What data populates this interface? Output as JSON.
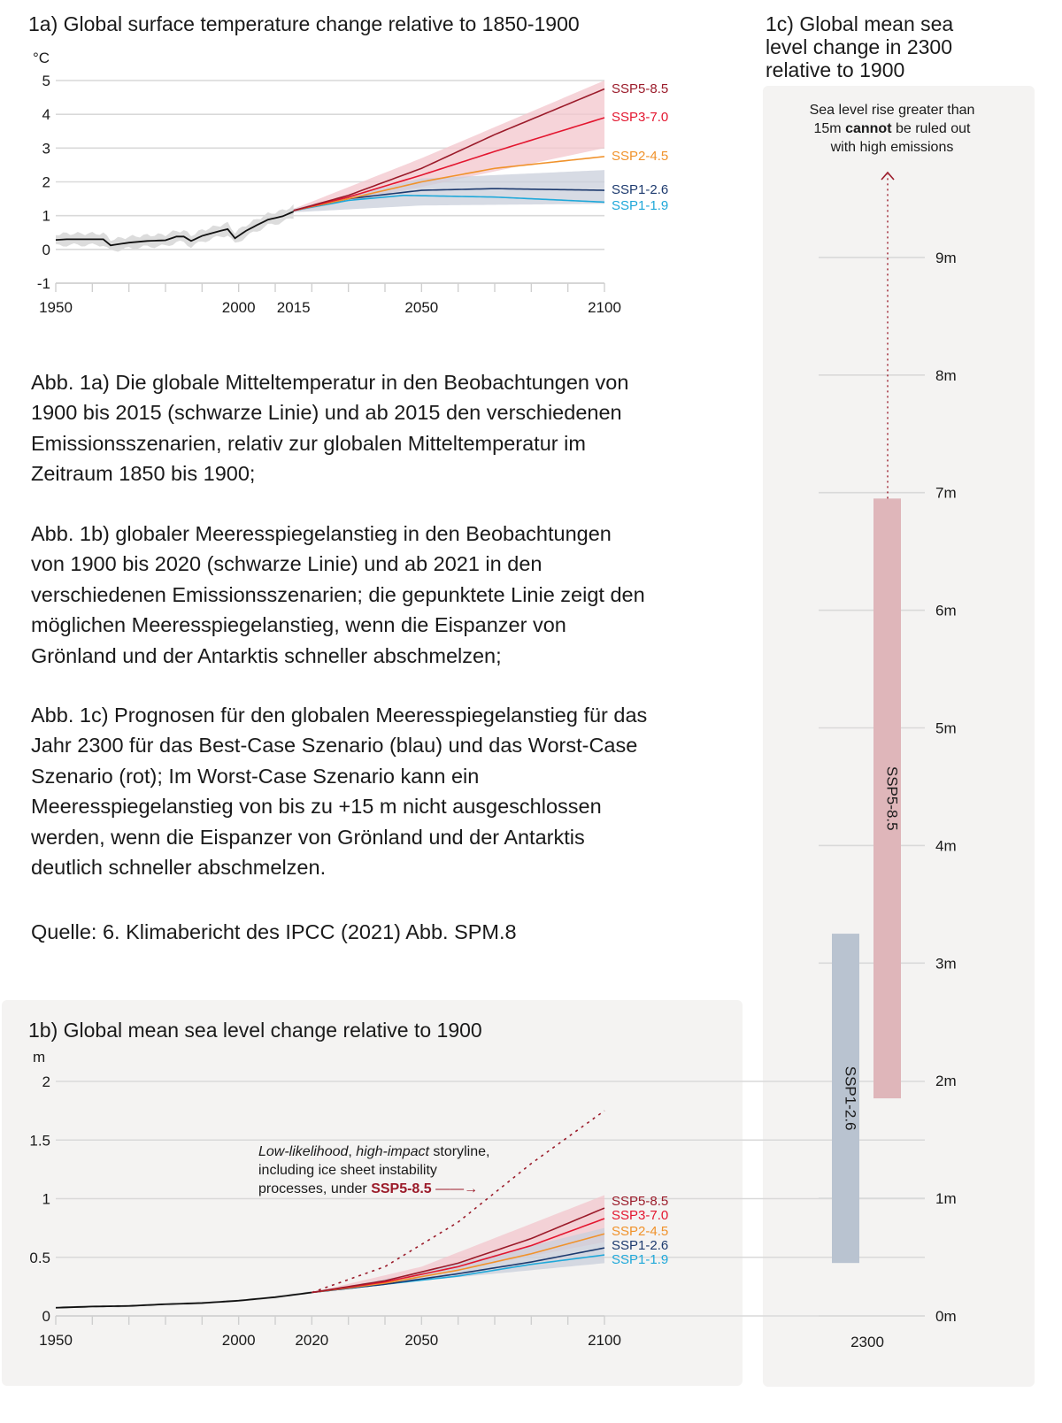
{
  "colors": {
    "ssp585": "#9b1b2a",
    "ssp370": "#e3162f",
    "ssp245": "#f0922b",
    "ssp126": "#1d3a6e",
    "ssp119": "#1fa8d9",
    "observed": "#111111",
    "red_band": "#f3c6cc",
    "blue_band": "#c9cfdb",
    "grey_band": "#dcdcdc",
    "panel": "#f4f3f2"
  },
  "text": {
    "paragraphs": [
      [
        "Abb. 1a) Die globale Mitteltemperatur in den Beobachtungen von",
        "1900 bis 2015 (schwarze Linie) und ab 2015 den verschiedenen",
        "Emissionsszenarien, relativ zur globalen Mitteltemperatur im",
        "Zeitraum 1850 bis 1900;"
      ],
      [
        "Abb. 1b) globaler Meeresspiegelanstieg in den Beobachtungen",
        "von 1900 bis 2020 (schwarze Linie) und ab 2021 in den",
        "verschiedenen Emissionsszenarien; die gepunktete Linie zeigt den",
        "möglichen Meeresspiegelanstieg, wenn die Eispanzer von",
        "Grönland und der Antarktis schneller abschmelzen;"
      ],
      [
        "Abb. 1c) Prognosen für den globalen Meeresspiegelanstieg für das",
        "Jahr 2300 für das Best-Case Szenario (blau) und das Worst-Case",
        "Szenario (rot); Im Worst-Case Szenario kann ein",
        "Meeresspiegelanstieg von bis zu +15 m nicht ausgeschlossen",
        "werden, wenn die Eispanzer von Grönland und der Antarktis",
        "deutlich schneller abschmelzen."
      ]
    ],
    "source": "Quelle: 6. Klimabericht des IPCC (2021) Abb. SPM.8"
  },
  "chart_data": [
    {
      "id": "1a",
      "type": "line",
      "title": "1a) Global surface temperature change relative to 1850-1900",
      "ylabel": "°C",
      "xlim": [
        1950,
        2100
      ],
      "ylim": [
        -1,
        5
      ],
      "yticks": [
        "5",
        "4",
        "3",
        "2",
        "1",
        "0",
        "-1"
      ],
      "ytick_values": [
        5,
        4,
        3,
        2,
        1,
        0,
        -1
      ],
      "xticks": [
        "1950",
        "2000",
        "2015",
        "2050",
        "2100"
      ],
      "xtick_values": [
        1950,
        2000,
        2015,
        2050,
        2100
      ],
      "grid": true,
      "observed": {
        "x": [
          1950,
          1953,
          1960,
          1963,
          1965,
          1970,
          1975,
          1980,
          1983,
          1985,
          1987,
          1990,
          1995,
          1997,
          1999,
          2002,
          2005,
          2008,
          2012,
          2015
        ],
        "y": [
          0.28,
          0.3,
          0.3,
          0.3,
          0.12,
          0.2,
          0.25,
          0.27,
          0.38,
          0.38,
          0.25,
          0.4,
          0.55,
          0.6,
          0.33,
          0.55,
          0.72,
          0.88,
          0.98,
          1.12
        ],
        "band_halfwidth": 0.17
      },
      "bands": [
        {
          "name": "high-emission range",
          "x": [
            2015,
            2050,
            2100
          ],
          "low": [
            1.1,
            1.85,
            3.0
          ],
          "high": [
            1.2,
            2.7,
            5.0
          ],
          "color": "red_band"
        },
        {
          "name": "low-emission range",
          "x": [
            2015,
            2050,
            2100
          ],
          "low": [
            1.1,
            1.3,
            1.35
          ],
          "high": [
            1.2,
            2.1,
            2.35
          ],
          "color": "blue_band"
        }
      ],
      "series": [
        {
          "name": "SSP5-8.5",
          "color": "ssp585",
          "x": [
            2015,
            2030,
            2050,
            2070,
            2100
          ],
          "values": [
            1.15,
            1.6,
            2.4,
            3.4,
            4.75
          ]
        },
        {
          "name": "SSP3-7.0",
          "color": "ssp370",
          "x": [
            2015,
            2030,
            2050,
            2070,
            2100
          ],
          "values": [
            1.15,
            1.55,
            2.2,
            2.9,
            3.9
          ]
        },
        {
          "name": "SSP2-4.5",
          "color": "ssp245",
          "x": [
            2015,
            2030,
            2050,
            2070,
            2100
          ],
          "values": [
            1.15,
            1.5,
            2.0,
            2.4,
            2.75
          ]
        },
        {
          "name": "SSP1-2.6",
          "color": "ssp126",
          "x": [
            2015,
            2030,
            2050,
            2070,
            2100
          ],
          "values": [
            1.15,
            1.5,
            1.75,
            1.8,
            1.75
          ]
        },
        {
          "name": "SSP1-1.9",
          "color": "ssp119",
          "x": [
            2015,
            2030,
            2045,
            2070,
            2100
          ],
          "values": [
            1.15,
            1.45,
            1.6,
            1.55,
            1.4
          ]
        }
      ]
    },
    {
      "id": "1b",
      "type": "line",
      "title": "1b) Global mean sea level change relative to 1900",
      "ylabel": "m",
      "xlim": [
        1950,
        2100
      ],
      "ylim": [
        0,
        2
      ],
      "yticks": [
        "2",
        "1.5",
        "1",
        "0.5",
        "0"
      ],
      "ytick_values": [
        2,
        1.5,
        1,
        0.5,
        0
      ],
      "xticks": [
        "1950",
        "2000",
        "2020",
        "2050",
        "2100"
      ],
      "xtick_values": [
        1950,
        2000,
        2020,
        2050,
        2100
      ],
      "grid": true,
      "observed": {
        "x": [
          1950,
          1960,
          1970,
          1980,
          1990,
          2000,
          2010,
          2020
        ],
        "y": [
          0.07,
          0.08,
          0.085,
          0.1,
          0.11,
          0.13,
          0.16,
          0.2
        ],
        "band_halfwidth": 0.01
      },
      "bands": [
        {
          "name": "high-emission range",
          "x": [
            2020,
            2050,
            2100
          ],
          "low": [
            0.2,
            0.33,
            0.63
          ],
          "high": [
            0.2,
            0.42,
            1.03
          ],
          "color": "red_band"
        },
        {
          "name": "low-emission range",
          "x": [
            2020,
            2050,
            2100
          ],
          "low": [
            0.2,
            0.3,
            0.45
          ],
          "high": [
            0.2,
            0.37,
            0.75
          ],
          "color": "blue_band"
        }
      ],
      "series": [
        {
          "name": "SSP5-8.5",
          "color": "ssp585",
          "x": [
            2020,
            2040,
            2060,
            2080,
            2100
          ],
          "values": [
            0.2,
            0.3,
            0.45,
            0.66,
            0.92
          ]
        },
        {
          "name": "SSP3-7.0",
          "color": "ssp370",
          "x": [
            2020,
            2040,
            2060,
            2080,
            2100
          ],
          "values": [
            0.2,
            0.29,
            0.42,
            0.6,
            0.83
          ]
        },
        {
          "name": "SSP2-4.5",
          "color": "ssp245",
          "x": [
            2020,
            2040,
            2060,
            2080,
            2100
          ],
          "values": [
            0.2,
            0.28,
            0.39,
            0.53,
            0.7
          ]
        },
        {
          "name": "SSP1-2.6",
          "color": "ssp126",
          "x": [
            2020,
            2040,
            2060,
            2080,
            2100
          ],
          "values": [
            0.2,
            0.27,
            0.36,
            0.46,
            0.58
          ]
        },
        {
          "name": "SSP1-1.9",
          "color": "ssp119",
          "x": [
            2020,
            2040,
            2060,
            2080,
            2100
          ],
          "values": [
            0.2,
            0.27,
            0.34,
            0.44,
            0.52
          ]
        }
      ],
      "storyline": {
        "x": [
          2020,
          2040,
          2060,
          2070,
          2080,
          2100
        ],
        "values": [
          0.2,
          0.42,
          0.8,
          1.05,
          1.3,
          1.75
        ],
        "label_italic_1": "Low-likelihood",
        "label_sep": ", ",
        "label_italic_2": "high-impact",
        "label_rest_1": " storyline,",
        "label_line_2": "including ice sheet instability",
        "label_line_3": "processes, under ",
        "label_scenario": "SSP5-8.5"
      }
    },
    {
      "id": "1c",
      "type": "bar",
      "title_lines": [
        "1c) Global mean sea",
        "level change in 2300",
        "relative to 1900"
      ],
      "category": "2300",
      "ylim": [
        0,
        9
      ],
      "yticks": [
        "9m",
        "8m",
        "7m",
        "6m",
        "5m",
        "4m",
        "3m",
        "2m",
        "1m",
        "0m"
      ],
      "ytick_values": [
        9,
        8,
        7,
        6,
        5,
        4,
        3,
        2,
        1,
        0
      ],
      "ranges": [
        {
          "name": "SSP1-2.6",
          "low": 0.45,
          "high": 3.25,
          "color": "blue_band",
          "text_color": "ssp126"
        },
        {
          "name": "SSP5-8.5",
          "low": 1.85,
          "high": 6.95,
          "color": "red_band",
          "text_color": "ssp585"
        }
      ],
      "note": {
        "pre": "Sea level rise greater than",
        "line2_pre": "15m ",
        "bold": "cannot",
        "line2_post": " be ruled out",
        "line3": "with high emissions"
      }
    }
  ]
}
